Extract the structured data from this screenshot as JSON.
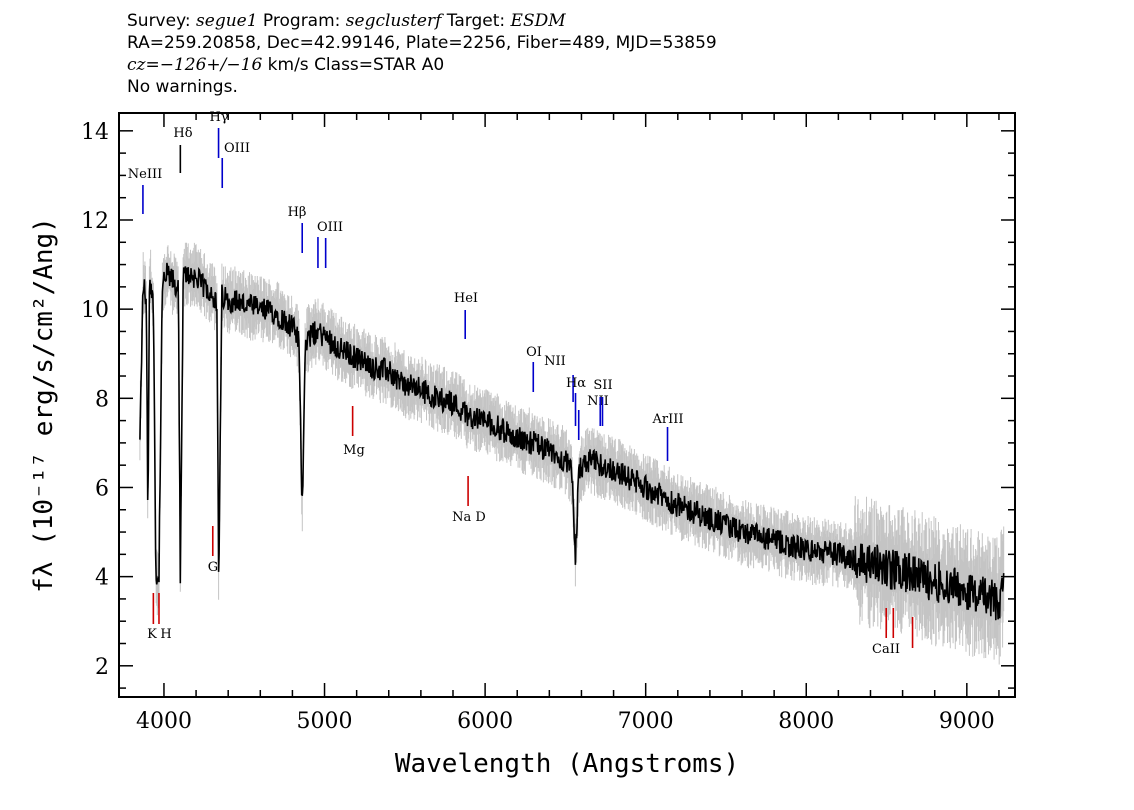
{
  "header": {
    "line1": {
      "survey_label": "Survey: ",
      "survey": "segue1",
      "program_label": " Program: ",
      "program": "segclusterf",
      "target_label": " Target: ",
      "target": "ESDM"
    },
    "line2": "RA=259.20858, Dec=42.99146, Plate=2256, Fiber=489, MJD=53859",
    "line3": {
      "cz": "cz=−126+/−16",
      "rest": " km/s  Class=STAR A0"
    },
    "line4": "No warnings."
  },
  "chart_data": {
    "type": "line",
    "xlabel": "Wavelength (Angstroms)",
    "ylabel": "fλ (10⁻¹⁷ erg/s/cm²/Ang)",
    "xlim": [
      3720,
      9300
    ],
    "ylim": [
      1.3,
      14.4
    ],
    "xticks": [
      4000,
      5000,
      6000,
      7000,
      8000,
      9000
    ],
    "yticks": [
      2,
      4,
      6,
      8,
      10,
      12,
      14
    ],
    "grid": false,
    "series": [
      {
        "role": "flux",
        "color": "#000000",
        "x": [
          3850,
          3870,
          3890,
          3900,
          3910,
          3935,
          3950,
          3968,
          3990,
          4020,
          4060,
          4090,
          4102,
          4120,
          4150,
          4200,
          4250,
          4300,
          4330,
          4341,
          4360,
          4400,
          4450,
          4500,
          4600,
          4700,
          4800,
          4840,
          4861,
          4880,
          4950,
          5000,
          5100,
          5200,
          5300,
          5400,
          5500,
          5600,
          5700,
          5800,
          5900,
          6000,
          6100,
          6200,
          6300,
          6400,
          6500,
          6540,
          6563,
          6585,
          6650,
          6800,
          7000,
          7200,
          7400,
          7600,
          7800,
          8000,
          8200,
          8400,
          8600,
          8800,
          9000,
          9200,
          9230
        ],
        "y": [
          7.0,
          10.6,
          10.2,
          5.2,
          10.8,
          10.0,
          4.0,
          3.8,
          10.5,
          10.8,
          10.6,
          10.4,
          3.9,
          10.7,
          10.8,
          10.7,
          10.5,
          10.4,
          10.0,
          3.6,
          10.3,
          10.2,
          10.2,
          10.1,
          10.0,
          9.9,
          9.6,
          9.3,
          5.5,
          9.3,
          9.5,
          9.4,
          9.1,
          8.9,
          8.7,
          8.6,
          8.3,
          8.2,
          8.0,
          7.9,
          7.6,
          7.5,
          7.3,
          7.1,
          7.0,
          6.8,
          6.6,
          6.3,
          4.5,
          6.4,
          6.6,
          6.4,
          6.0,
          5.6,
          5.3,
          5.0,
          4.8,
          4.6,
          4.5,
          4.3,
          4.1,
          3.9,
          3.7,
          3.4,
          3.9
        ]
      }
    ],
    "line_ids": [
      {
        "label": "NeIII",
        "x": 3869,
        "color": "#0000cc"
      },
      {
        "label": "Hδ",
        "x": 4102,
        "color": "#000000"
      },
      {
        "label": "Hγ",
        "x": 4340,
        "color": "#0000cc"
      },
      {
        "label": "OIII",
        "x": 4363,
        "color": "#0000cc"
      },
      {
        "label": "Hβ",
        "x": 4861,
        "color": "#0000cc"
      },
      {
        "label": "OIII",
        "x": 4959,
        "color": "#0000cc"
      },
      {
        "label": "",
        "x": 5007,
        "color": "#0000cc"
      },
      {
        "label": "HeI",
        "x": 5876,
        "color": "#0000cc"
      },
      {
        "label": "OI",
        "x": 6300,
        "color": "#0000cc"
      },
      {
        "label": "NII",
        "x": 6548,
        "color": "#0000cc"
      },
      {
        "label": "Hα",
        "x": 6563,
        "color": "#0000cc"
      },
      {
        "label": "NII",
        "x": 6583,
        "color": "#0000cc"
      },
      {
        "label": "SII",
        "x": 6717,
        "color": "#0000cc"
      },
      {
        "label": "",
        "x": 6731,
        "color": "#0000cc"
      },
      {
        "label": "ArIII",
        "x": 7136,
        "color": "#0000cc"
      },
      {
        "label": "K",
        "x": 3934,
        "color": "#cc0000"
      },
      {
        "label": "H",
        "x": 3969,
        "color": "#cc0000"
      },
      {
        "label": "G",
        "x": 4304,
        "color": "#cc0000"
      },
      {
        "label": "Mg",
        "x": 5175,
        "color": "#cc0000"
      },
      {
        "label": "Na D",
        "x": 5894,
        "color": "#cc0000"
      },
      {
        "label": "CaII",
        "x": 8498,
        "color": "#cc0000"
      },
      {
        "label": "",
        "x": 8542,
        "color": "#cc0000"
      },
      {
        "label": "",
        "x": 8662,
        "color": "#cc0000"
      }
    ]
  }
}
